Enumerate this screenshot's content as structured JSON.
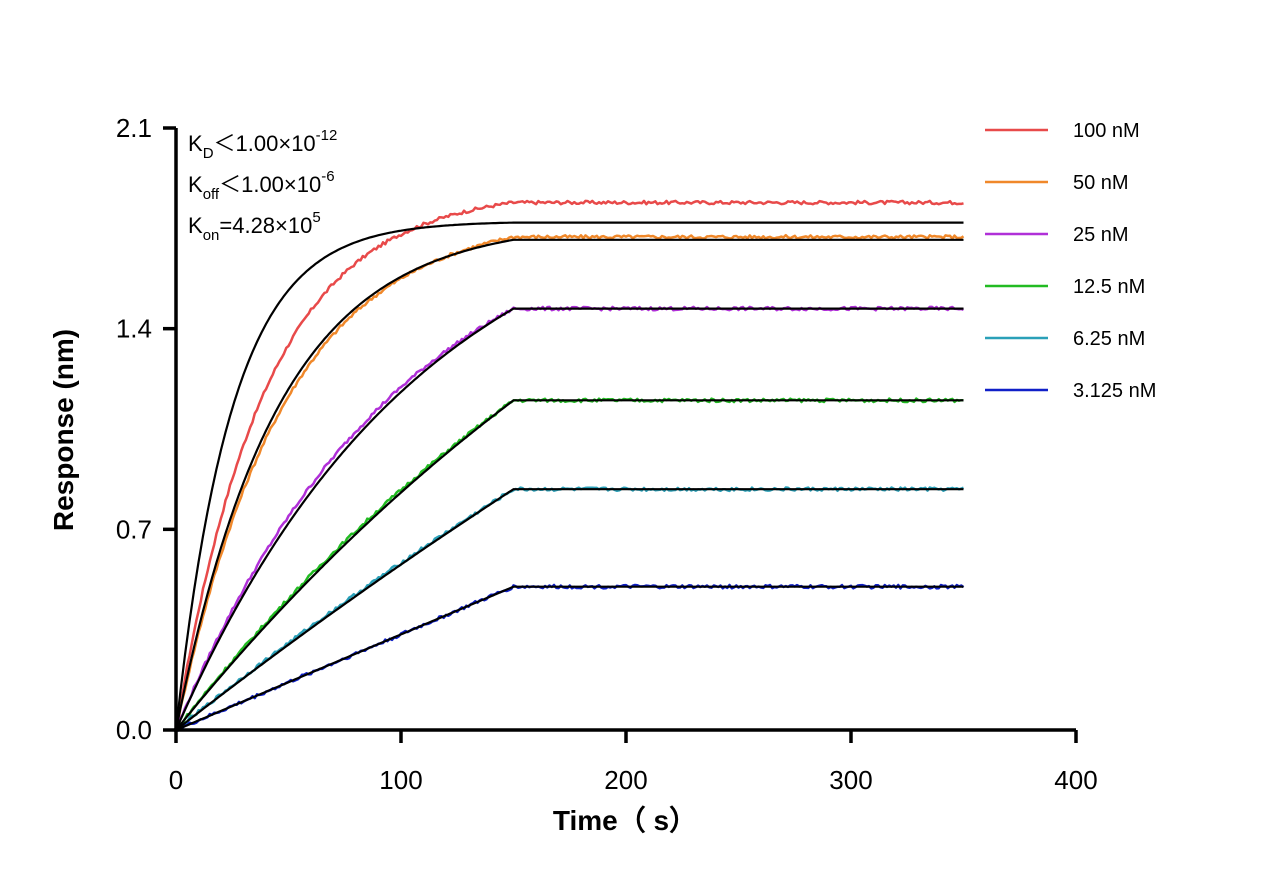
{
  "chart_data": {
    "type": "line",
    "xlabel": "Time（ s）",
    "ylabel": "Response (nm)",
    "xlim": [
      0,
      400
    ],
    "ylim": [
      0,
      2.1
    ],
    "xticks": [
      0,
      100,
      200,
      300,
      400
    ],
    "yticks": [
      "0.0",
      "0.7",
      "1.4",
      "2.1"
    ],
    "association_end": 150,
    "dissociation_end": 350,
    "annotations": [
      {
        "main": "K",
        "sub": "D",
        "rest": "＜1.00×10",
        "sup": "-12"
      },
      {
        "main": "K",
        "sub": "off",
        "rest": "＜1.00×10",
        "sup": "-6"
      },
      {
        "main": "K",
        "sub": "on",
        "rest": "=4.28×10",
        "sup": "5"
      }
    ],
    "series": [
      {
        "name": "100 nM",
        "color": "#e84a4a",
        "plateau": 1.84,
        "fit_plateau": 1.77,
        "tau": 40,
        "fit_tau": 25
      },
      {
        "name": "50 nM",
        "color": "#f0882a",
        "plateau": 1.72,
        "fit_plateau": 1.71,
        "tau": 48,
        "fit_tau": 45
      },
      {
        "name": "25 nM",
        "color": "#b030d8",
        "plateau": 1.47,
        "fit_plateau": 1.47,
        "tau": 100,
        "fit_tau": 110
      },
      {
        "name": "12.5 nM",
        "color": "#22bb22",
        "plateau": 1.15,
        "fit_plateau": 1.15,
        "tau": 260,
        "fit_tau": 300
      },
      {
        "name": "6.25 nM",
        "color": "#2aa0b8",
        "plateau": 0.84,
        "fit_plateau": 0.84,
        "tau": 600,
        "fit_tau": 800
      },
      {
        "name": "3.125 nM",
        "color": "#1020c8",
        "plateau": 0.5,
        "fit_plateau": 0.5,
        "tau": 100000,
        "fit_tau": 100000
      }
    ]
  }
}
